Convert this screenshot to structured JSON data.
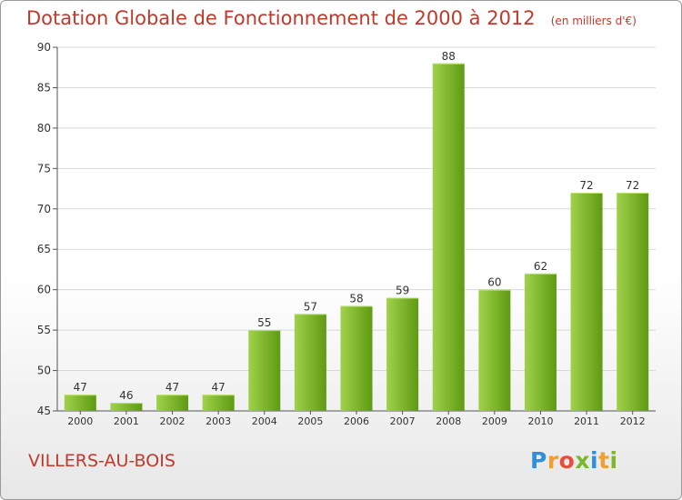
{
  "title": "Dotation Globale de Fonctionnement de 2000 à 2012",
  "subtitle": "(en milliers d'€)",
  "commune": "VILLERS-AU-BOIS",
  "logo": {
    "text": "Proxiti",
    "letters": [
      {
        "char": "P",
        "color": "#2f8fd8"
      },
      {
        "char": "r",
        "color": "#f0a030"
      },
      {
        "char": "o",
        "color": "#e84c3d"
      },
      {
        "char": "x",
        "color": "#7cb82f"
      },
      {
        "char": "i",
        "color": "#2f8fd8"
      },
      {
        "char": "t",
        "color": "#f0a030"
      },
      {
        "char": "i",
        "color": "#7cb82f"
      }
    ]
  },
  "colors": {
    "title": "#c0392b",
    "bar_light": "#9fd24a",
    "bar_dark": "#5e9a12",
    "grid": "#d8d8d8",
    "axis": "#555555"
  },
  "chart_data": {
    "type": "bar",
    "title": "Dotation Globale de Fonctionnement de 2000 à 2012",
    "subtitle": "(en milliers d'€)",
    "xlabel": "",
    "ylabel": "",
    "categories": [
      "2000",
      "2001",
      "2002",
      "2003",
      "2004",
      "2005",
      "2006",
      "2007",
      "2008",
      "2009",
      "2010",
      "2011",
      "2012"
    ],
    "values": [
      47,
      46,
      47,
      47,
      55,
      57,
      58,
      59,
      88,
      60,
      62,
      72,
      72
    ],
    "ylim": [
      45,
      90
    ],
    "yticks": [
      45,
      50,
      55,
      60,
      65,
      70,
      75,
      80,
      85,
      90
    ],
    "grid": true,
    "legend": "none"
  }
}
